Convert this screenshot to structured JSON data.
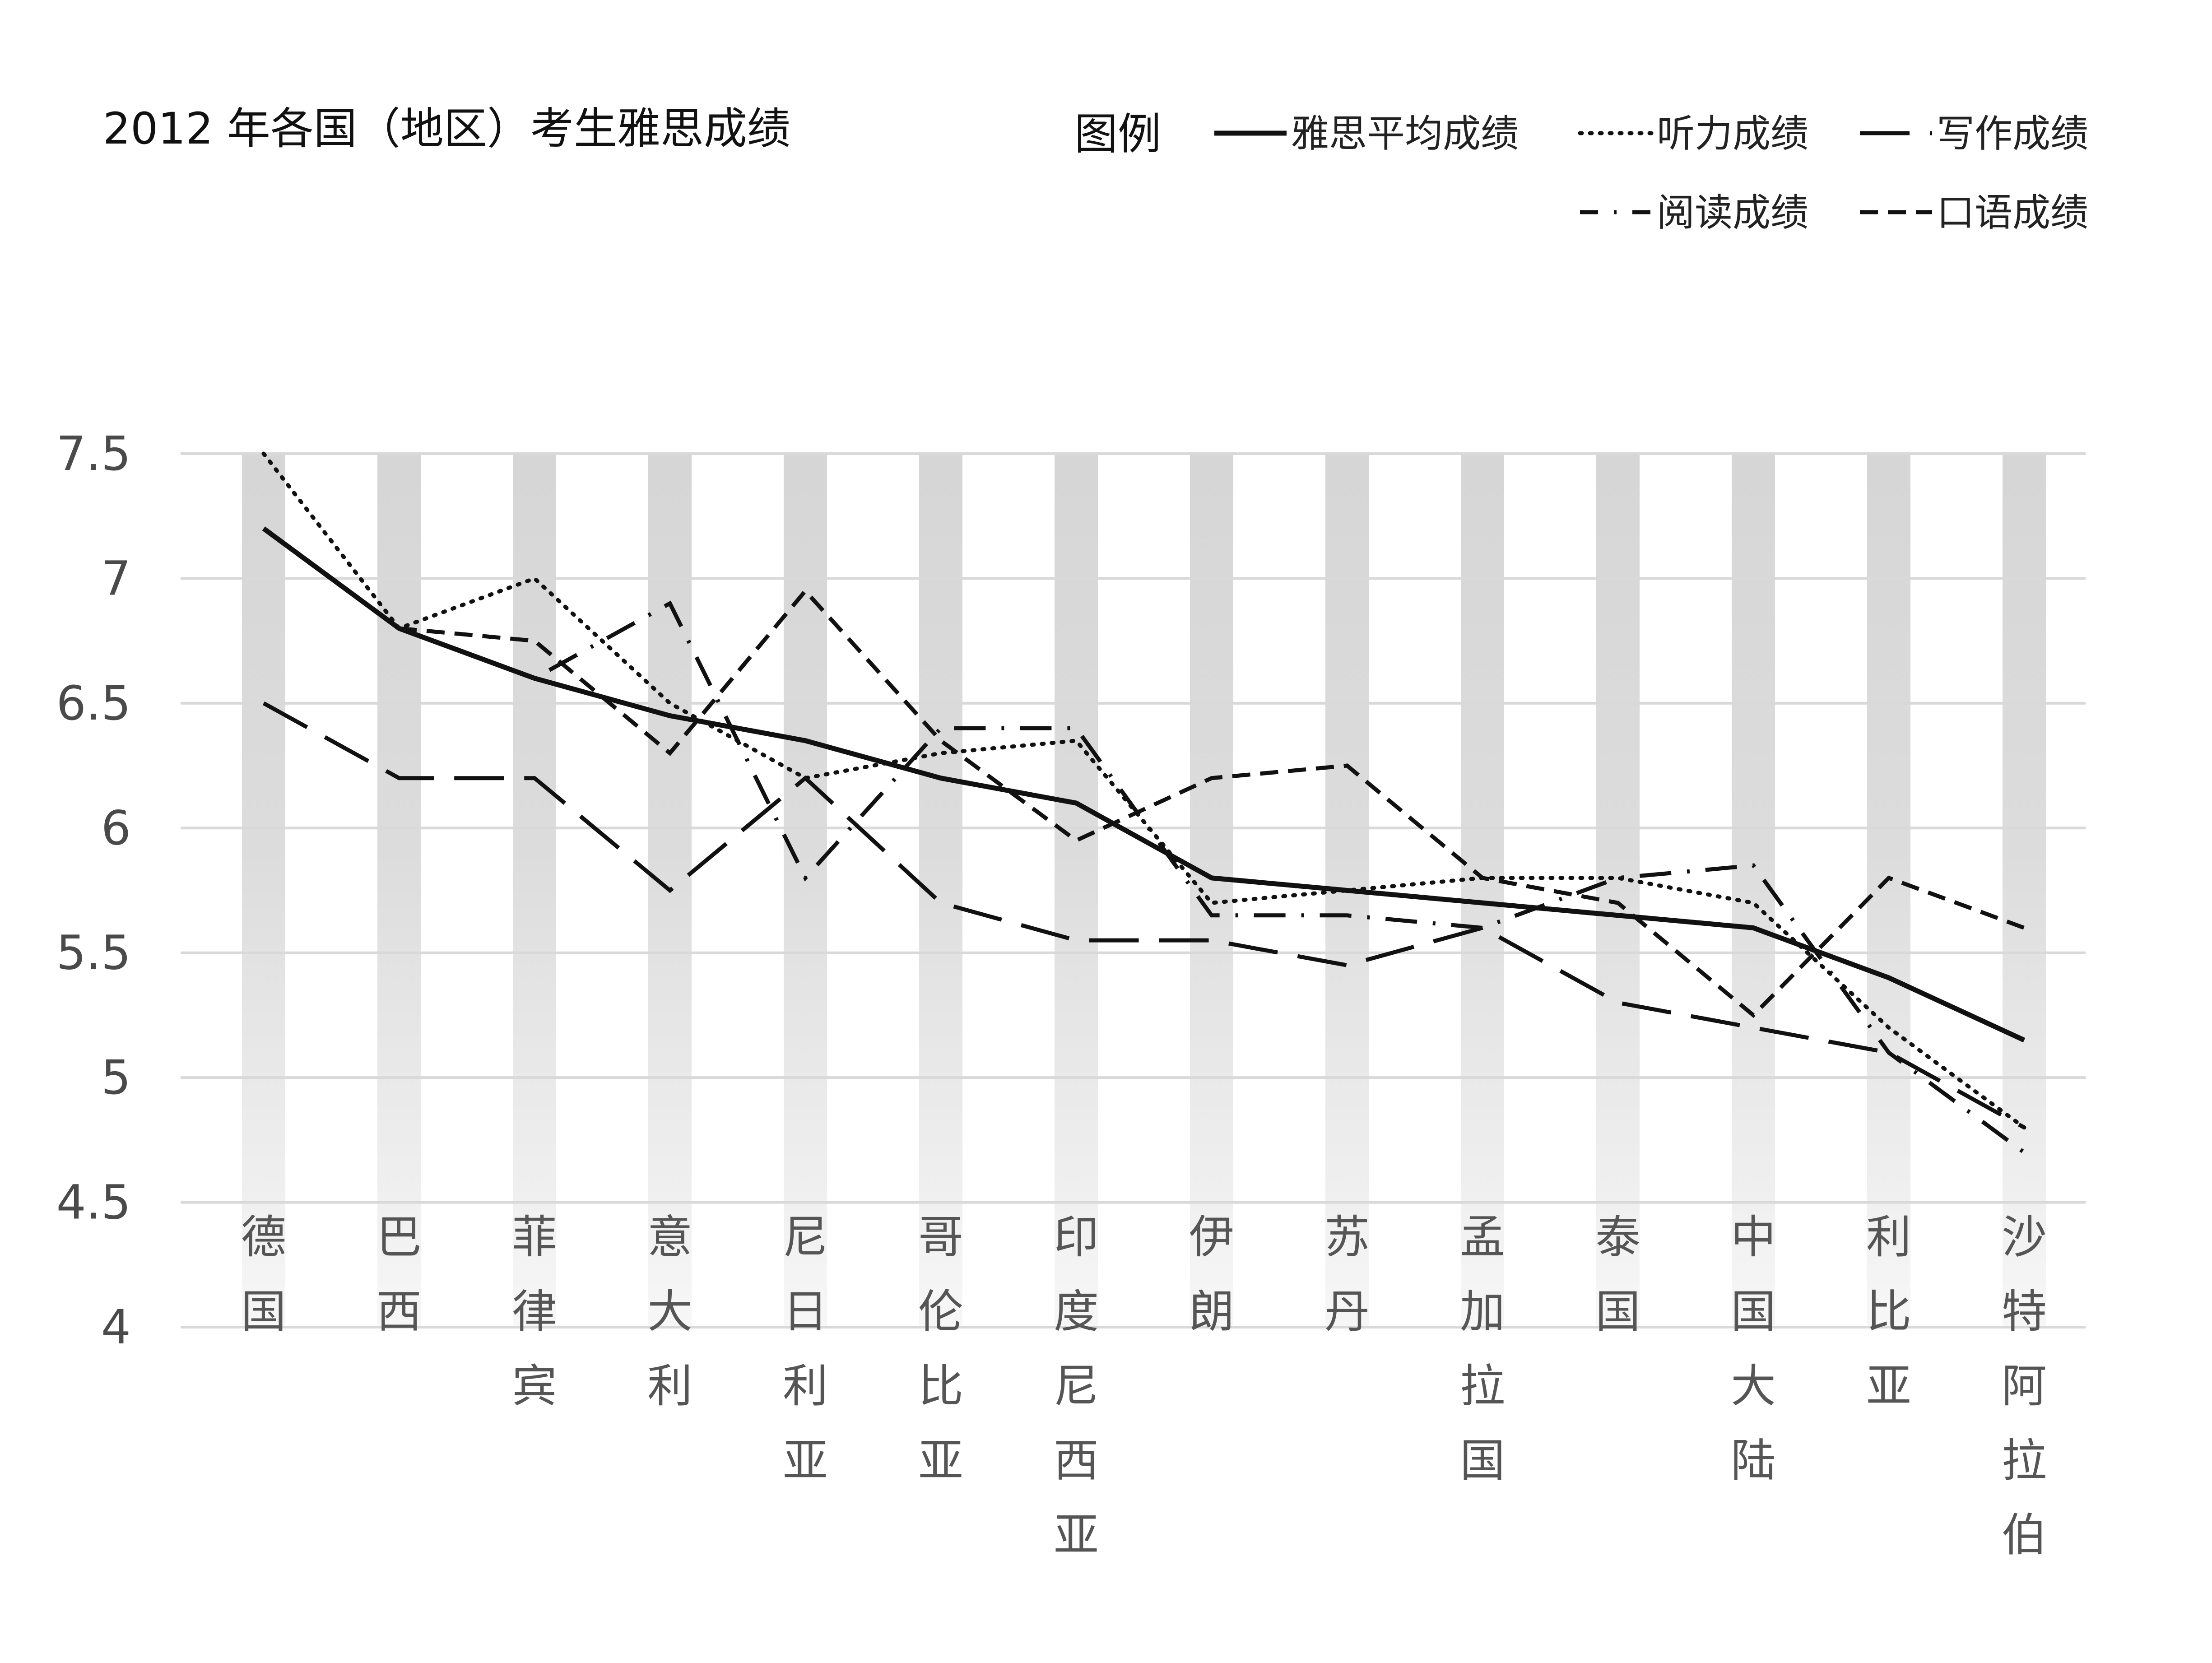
{
  "chart_data": {
    "type": "line",
    "title": "2012 年各国（地区）考生雅思成绩",
    "legend_title": "图例",
    "legend_position": "top-right",
    "categories": [
      "德国",
      "巴西",
      "菲律宾",
      "意大利",
      "尼日利亚",
      "哥伦比亚",
      "印度尼西亚",
      "伊朗",
      "苏丹",
      "孟加拉国",
      "泰国",
      "中国大陆",
      "利比亚",
      "沙特阿拉伯"
    ],
    "ylim": [
      4,
      7.5
    ],
    "yticks": [
      "4",
      "4.5",
      "5",
      "5.5",
      "6",
      "6.5",
      "7",
      "7.5"
    ],
    "grid": true,
    "series": [
      {
        "name": "雅思平均成绩",
        "style": "solid",
        "values": [
          7.2,
          6.8,
          6.6,
          6.45,
          6.35,
          6.2,
          6.1,
          5.8,
          5.75,
          5.7,
          5.65,
          5.6,
          5.4,
          5.15
        ]
      },
      {
        "name": "听力成绩",
        "style": "dotted",
        "values": [
          7.5,
          6.8,
          7.0,
          6.5,
          6.2,
          6.3,
          6.35,
          5.7,
          5.75,
          5.8,
          5.8,
          5.7,
          5.2,
          4.8
        ]
      },
      {
        "name": "写作成绩",
        "style": "longdash",
        "values": [
          6.5,
          6.2,
          6.2,
          5.75,
          6.2,
          5.7,
          5.55,
          5.55,
          5.45,
          5.6,
          5.3,
          5.2,
          5.1,
          4.8
        ]
      },
      {
        "name": "阅读成绩",
        "style": "dashdot",
        "values": [
          7.2,
          6.8,
          6.6,
          6.9,
          5.8,
          6.4,
          6.4,
          5.65,
          5.65,
          5.6,
          5.8,
          5.85,
          5.1,
          4.7
        ]
      },
      {
        "name": "口语成绩",
        "style": "dash",
        "values": [
          7.2,
          6.8,
          6.75,
          6.3,
          6.95,
          6.35,
          5.95,
          6.2,
          6.25,
          5.8,
          5.7,
          5.25,
          5.8,
          5.6
        ]
      }
    ]
  }
}
